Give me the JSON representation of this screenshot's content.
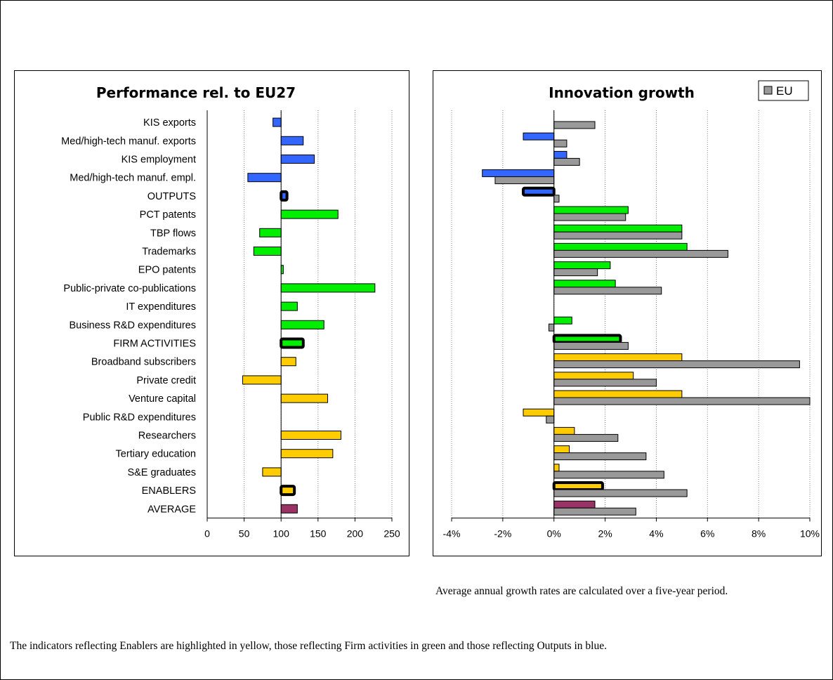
{
  "categories": [
    "KIS exports",
    "Med/high-tech manuf. exports",
    "KIS employment",
    "Med/high-tech manuf. empl.",
    "OUTPUTS",
    "PCT patents",
    "TBP flows",
    "Trademarks",
    "EPO patents",
    "Public-private co-publications",
    "IT expenditures",
    "Business R&D expenditures",
    "FIRM ACTIVITIES",
    "Broadband subscribers",
    "Private credit",
    "Venture capital",
    "Public R&D expenditures",
    "Researchers",
    "Tertiary education",
    "S&E graduates",
    "ENABLERS",
    "AVERAGE"
  ],
  "groups": [
    "outputs",
    "outputs",
    "outputs",
    "outputs",
    "outputs-composite",
    "firm",
    "firm",
    "firm",
    "firm",
    "firm",
    "firm",
    "firm",
    "firm-composite",
    "enablers",
    "enablers",
    "enablers",
    "enablers",
    "enablers",
    "enablers",
    "enablers",
    "enablers-composite",
    "average"
  ],
  "colors": {
    "outputs": "#3366ff",
    "firm": "#00ee00",
    "enablers": "#ffcc00",
    "average": "#993366",
    "eu": "#999999",
    "grid": "#808080"
  },
  "chart_data": [
    {
      "type": "bar",
      "orientation": "horizontal",
      "title": "Performance rel. to EU27",
      "baseline": 100,
      "xlim": [
        0,
        250
      ],
      "xticks": [
        "0",
        "50",
        "100",
        "150",
        "200",
        "250"
      ],
      "xtick_values": [
        0,
        50,
        100,
        150,
        200,
        250
      ],
      "values": [
        89,
        130,
        145,
        55,
        108,
        177,
        71,
        63,
        103,
        227,
        122,
        158,
        130,
        120,
        48,
        163,
        null,
        181,
        170,
        75,
        118,
        122
      ],
      "grid": true
    },
    {
      "type": "bar",
      "orientation": "horizontal",
      "title": "Innovation growth",
      "legend": [
        "EU"
      ],
      "legend_position": "top-right",
      "xlim": [
        -4,
        10
      ],
      "xticks": [
        "-4%",
        "-2%",
        "0%",
        "2%",
        "4%",
        "6%",
        "8%",
        "10%"
      ],
      "xtick_values": [
        -4,
        -2,
        0,
        2,
        4,
        6,
        8,
        10
      ],
      "series": [
        {
          "values": [
            null,
            -1.2,
            0.5,
            -2.8,
            -1.2,
            2.9,
            5.0,
            5.2,
            2.2,
            2.4,
            null,
            0.7,
            2.6,
            5.0,
            3.1,
            5.0,
            -1.2,
            0.8,
            0.6,
            0.2,
            1.9,
            1.6
          ]
        },
        {
          "name": "EU",
          "values": [
            1.6,
            0.5,
            1.0,
            -2.3,
            0.2,
            2.8,
            5.0,
            6.8,
            1.7,
            4.2,
            null,
            -0.2,
            2.9,
            9.6,
            4.0,
            10.1,
            -0.3,
            2.5,
            3.6,
            4.3,
            5.2,
            3.2
          ]
        }
      ],
      "grid": true
    }
  ],
  "notes": {
    "growth_note": "Average annual growth rates are calculated over a five-year period.",
    "color_note": "The indicators reflecting Enablers are highlighted in yellow, those reflecting Firm activities in green and those reflecting Outputs in blue."
  }
}
